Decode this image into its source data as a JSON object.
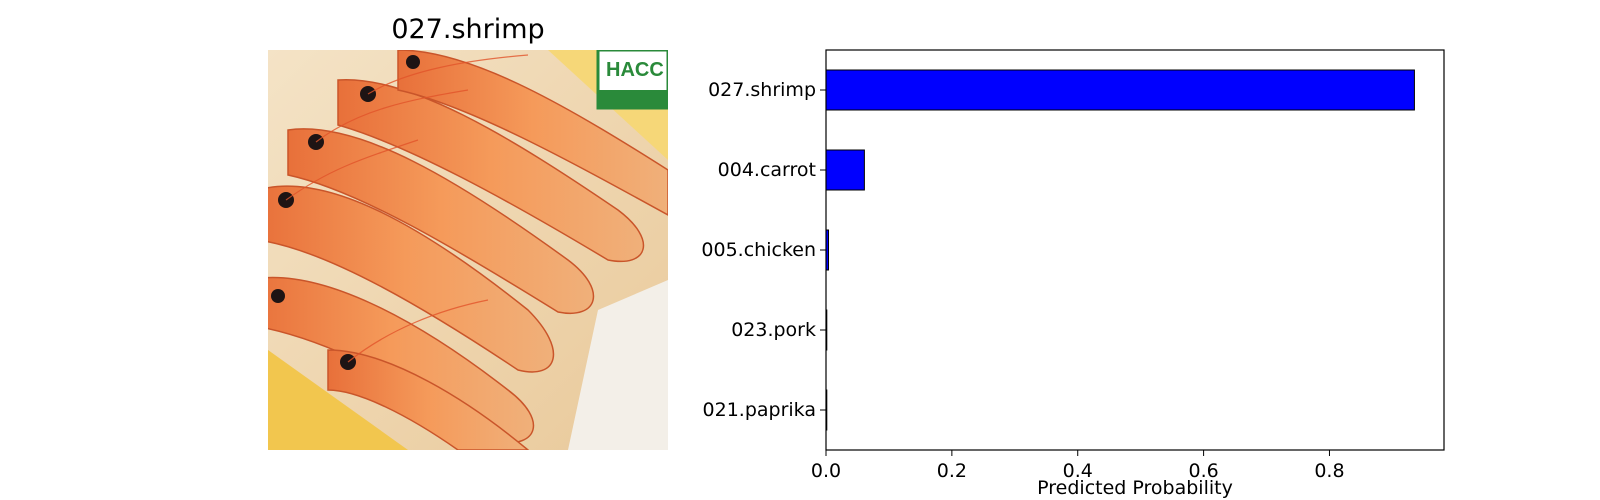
{
  "image_panel": {
    "title": "027.shrimp",
    "photo_label_text": "HACC",
    "photo_subject_icon": "shrimp-photo-icon"
  },
  "colors": {
    "bar_fill": "#0000ff",
    "bar_edge": "#000000",
    "axes_edge": "#000000",
    "background": "#ffffff"
  },
  "chart_data": {
    "type": "bar",
    "orientation": "horizontal",
    "categories": [
      "027.shrimp",
      "004.carrot",
      "005.chicken",
      "023.pork",
      "021.paprika"
    ],
    "values": [
      0.935,
      0.061,
      0.004,
      0.0007,
      0.0003
    ],
    "xlabel": "Predicted Probability",
    "ylabel": "",
    "xlim": [
      0,
      0.982
    ],
    "xticks": [
      0.0,
      0.2,
      0.4,
      0.6,
      0.8
    ],
    "xtick_labels": [
      "0.0",
      "0.2",
      "0.4",
      "0.6",
      "0.8"
    ],
    "grid": false,
    "legend": "none"
  }
}
